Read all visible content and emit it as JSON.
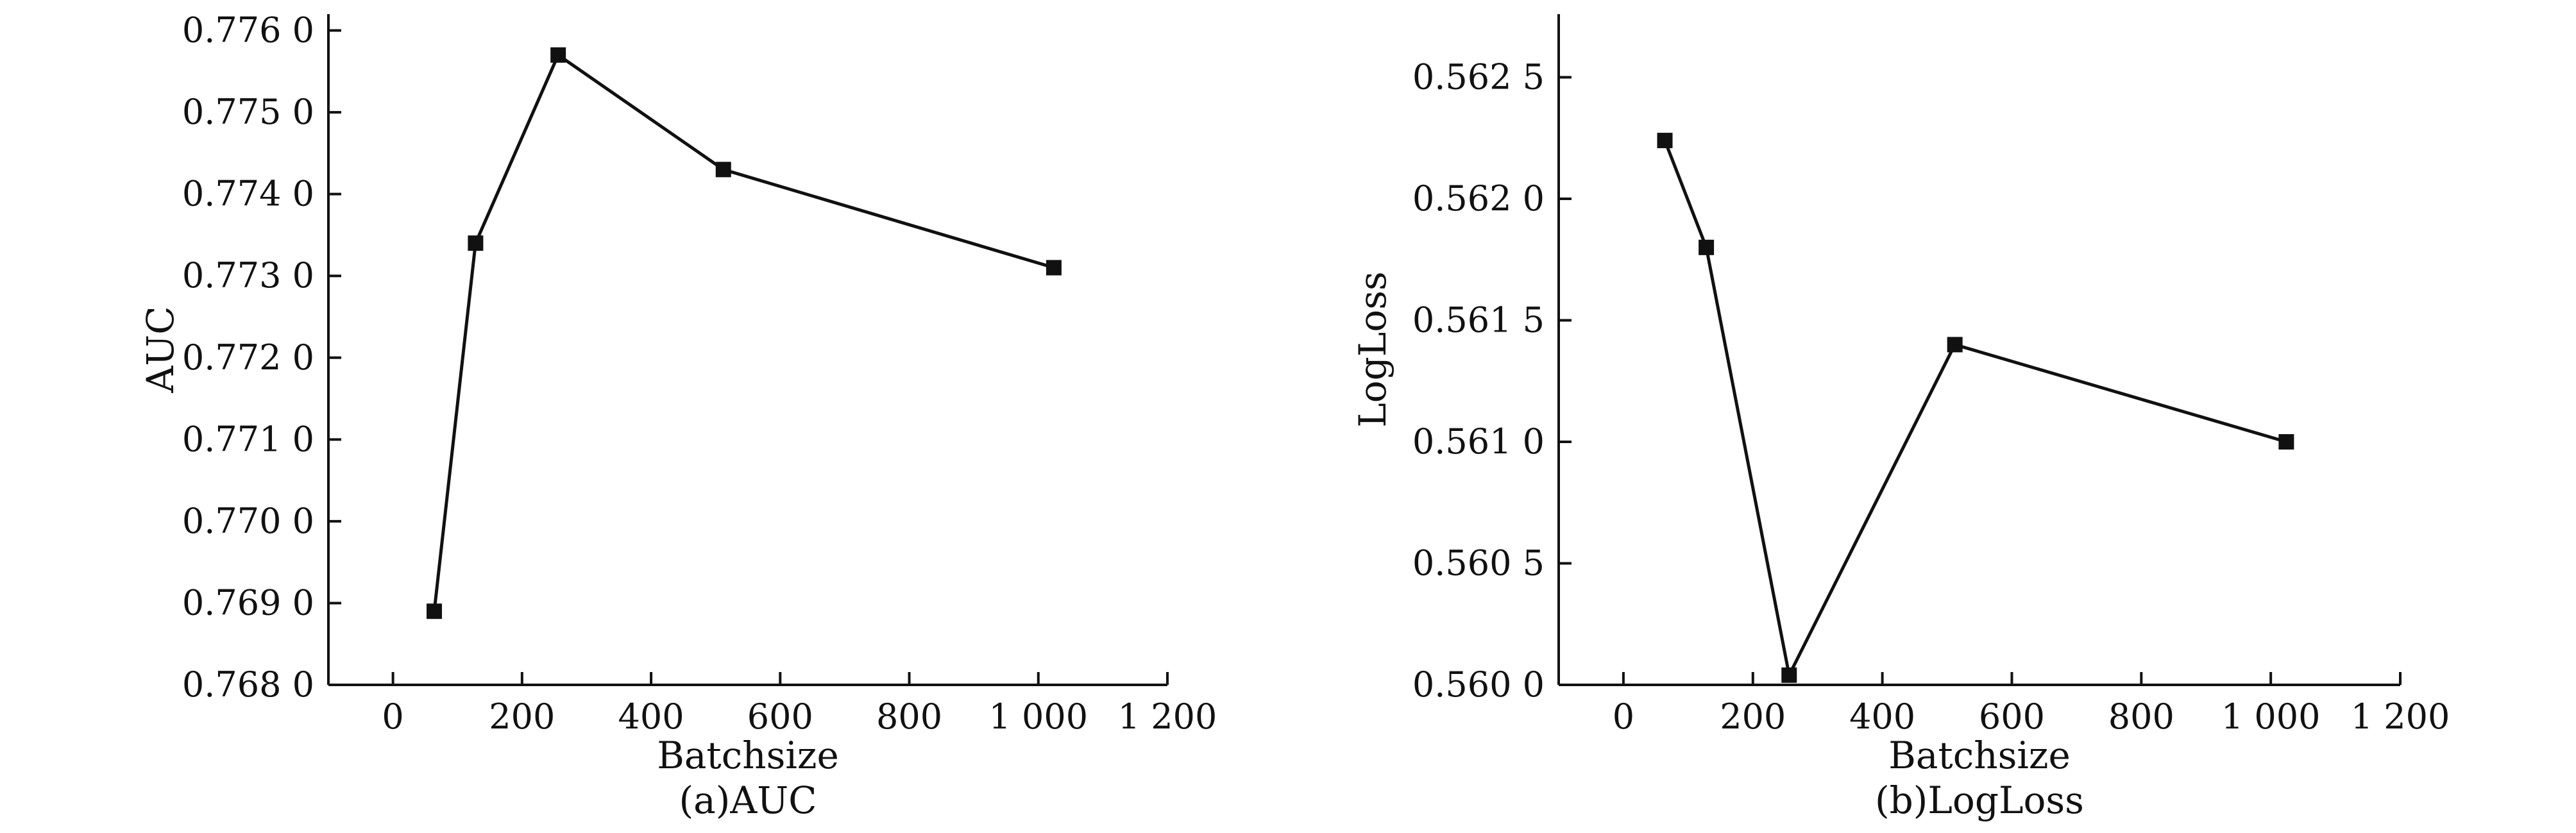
{
  "chart_data": [
    {
      "type": "line",
      "caption": "(a)AUC",
      "xlabel": "Batchsize",
      "ylabel": "AUC",
      "x": [
        64,
        128,
        256,
        512,
        1024
      ],
      "series": [
        {
          "values": [
            0.7689,
            0.7734,
            0.7757,
            0.7743,
            0.7731
          ]
        }
      ],
      "xlim": [
        -100,
        1200
      ],
      "ylim": [
        0.768,
        0.7762
      ],
      "xticks": [
        0,
        200,
        400,
        600,
        800,
        1000,
        1200
      ],
      "xtick_labels": [
        "0",
        "200",
        "400",
        "600",
        "800",
        "1 000",
        "1 200"
      ],
      "yticks": [
        0.768,
        0.769,
        0.77,
        0.771,
        0.772,
        0.773,
        0.774,
        0.775,
        0.776
      ],
      "ytick_labels": [
        "0.768 0",
        "0.769 0",
        "0.770 0",
        "0.771 0",
        "0.772 0",
        "0.773 0",
        "0.774 0",
        "0.775 0",
        "0.776 0"
      ],
      "marker": "square",
      "grid": false,
      "color": "#111111"
    },
    {
      "type": "line",
      "caption": "(b)LogLoss",
      "xlabel": "Batchsize",
      "ylabel": "LogLoss",
      "x": [
        64,
        128,
        256,
        512,
        1024
      ],
      "series": [
        {
          "values": [
            0.56224,
            0.5618,
            0.56004,
            0.5614,
            0.561
          ]
        }
      ],
      "xlim": [
        -100,
        1200
      ],
      "ylim": [
        0.56,
        0.56276
      ],
      "xticks": [
        0,
        200,
        400,
        600,
        800,
        1000,
        1200
      ],
      "xtick_labels": [
        "0",
        "200",
        "400",
        "600",
        "800",
        "1 000",
        "1 200"
      ],
      "yticks": [
        0.56,
        0.5605,
        0.561,
        0.5615,
        0.562,
        0.5625
      ],
      "ytick_labels": [
        "0.560 0",
        "0.560 5",
        "0.561 0",
        "0.561 5",
        "0.562 0",
        "0.562 5"
      ],
      "marker": "square",
      "grid": false,
      "color": "#111111"
    }
  ]
}
